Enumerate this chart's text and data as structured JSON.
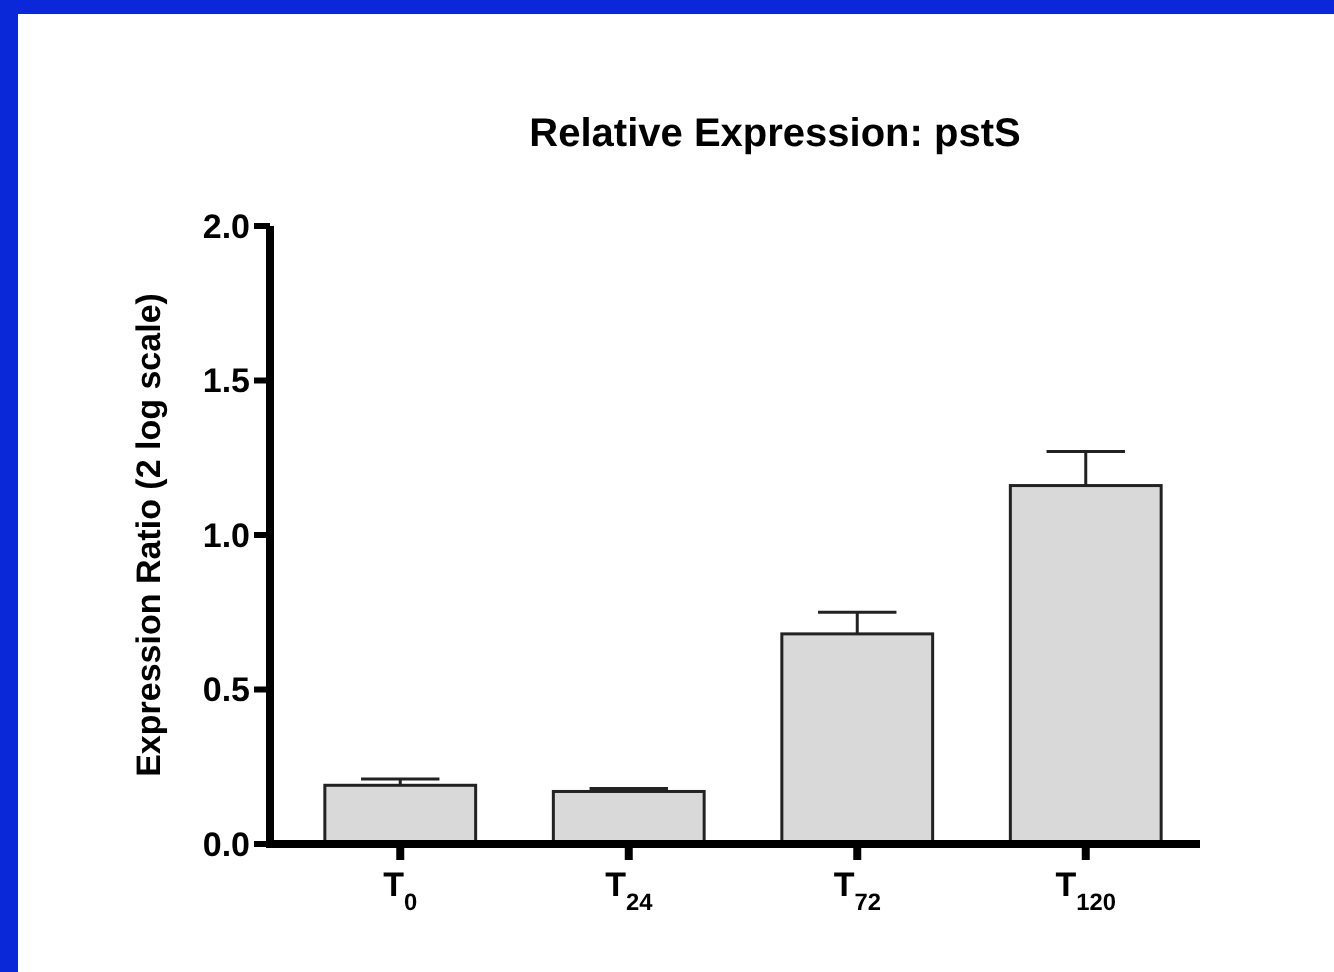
{
  "chart_data": {
    "type": "bar",
    "title": "Relative  Expression: pstS",
    "ylabel": "Expression Ratio (2 log scale)",
    "categories": [
      "T$_{0}$",
      "T$_{24}$",
      "T$_{72}$",
      "T$_{120}$"
    ],
    "values": [
      0.19,
      0.17,
      0.68,
      1.16
    ],
    "errors": [
      [
        0.19,
        0.21
      ],
      [
        0.17,
        0.18
      ],
      [
        0.68,
        0.75
      ],
      [
        1.16,
        1.27
      ]
    ],
    "color": "#d9d9d9",
    "ylim": [
      0,
      2
    ],
    "yticks": [
      {
        "value": 0,
        "label": "0.0"
      },
      {
        "value": 0.5,
        "label": "0.5"
      },
      {
        "value": 1,
        "label": "1.0"
      },
      {
        "value": 1.5,
        "label": "1.5"
      },
      {
        "value": 2,
        "label": "2.0"
      }
    ],
    "grid": false
  }
}
